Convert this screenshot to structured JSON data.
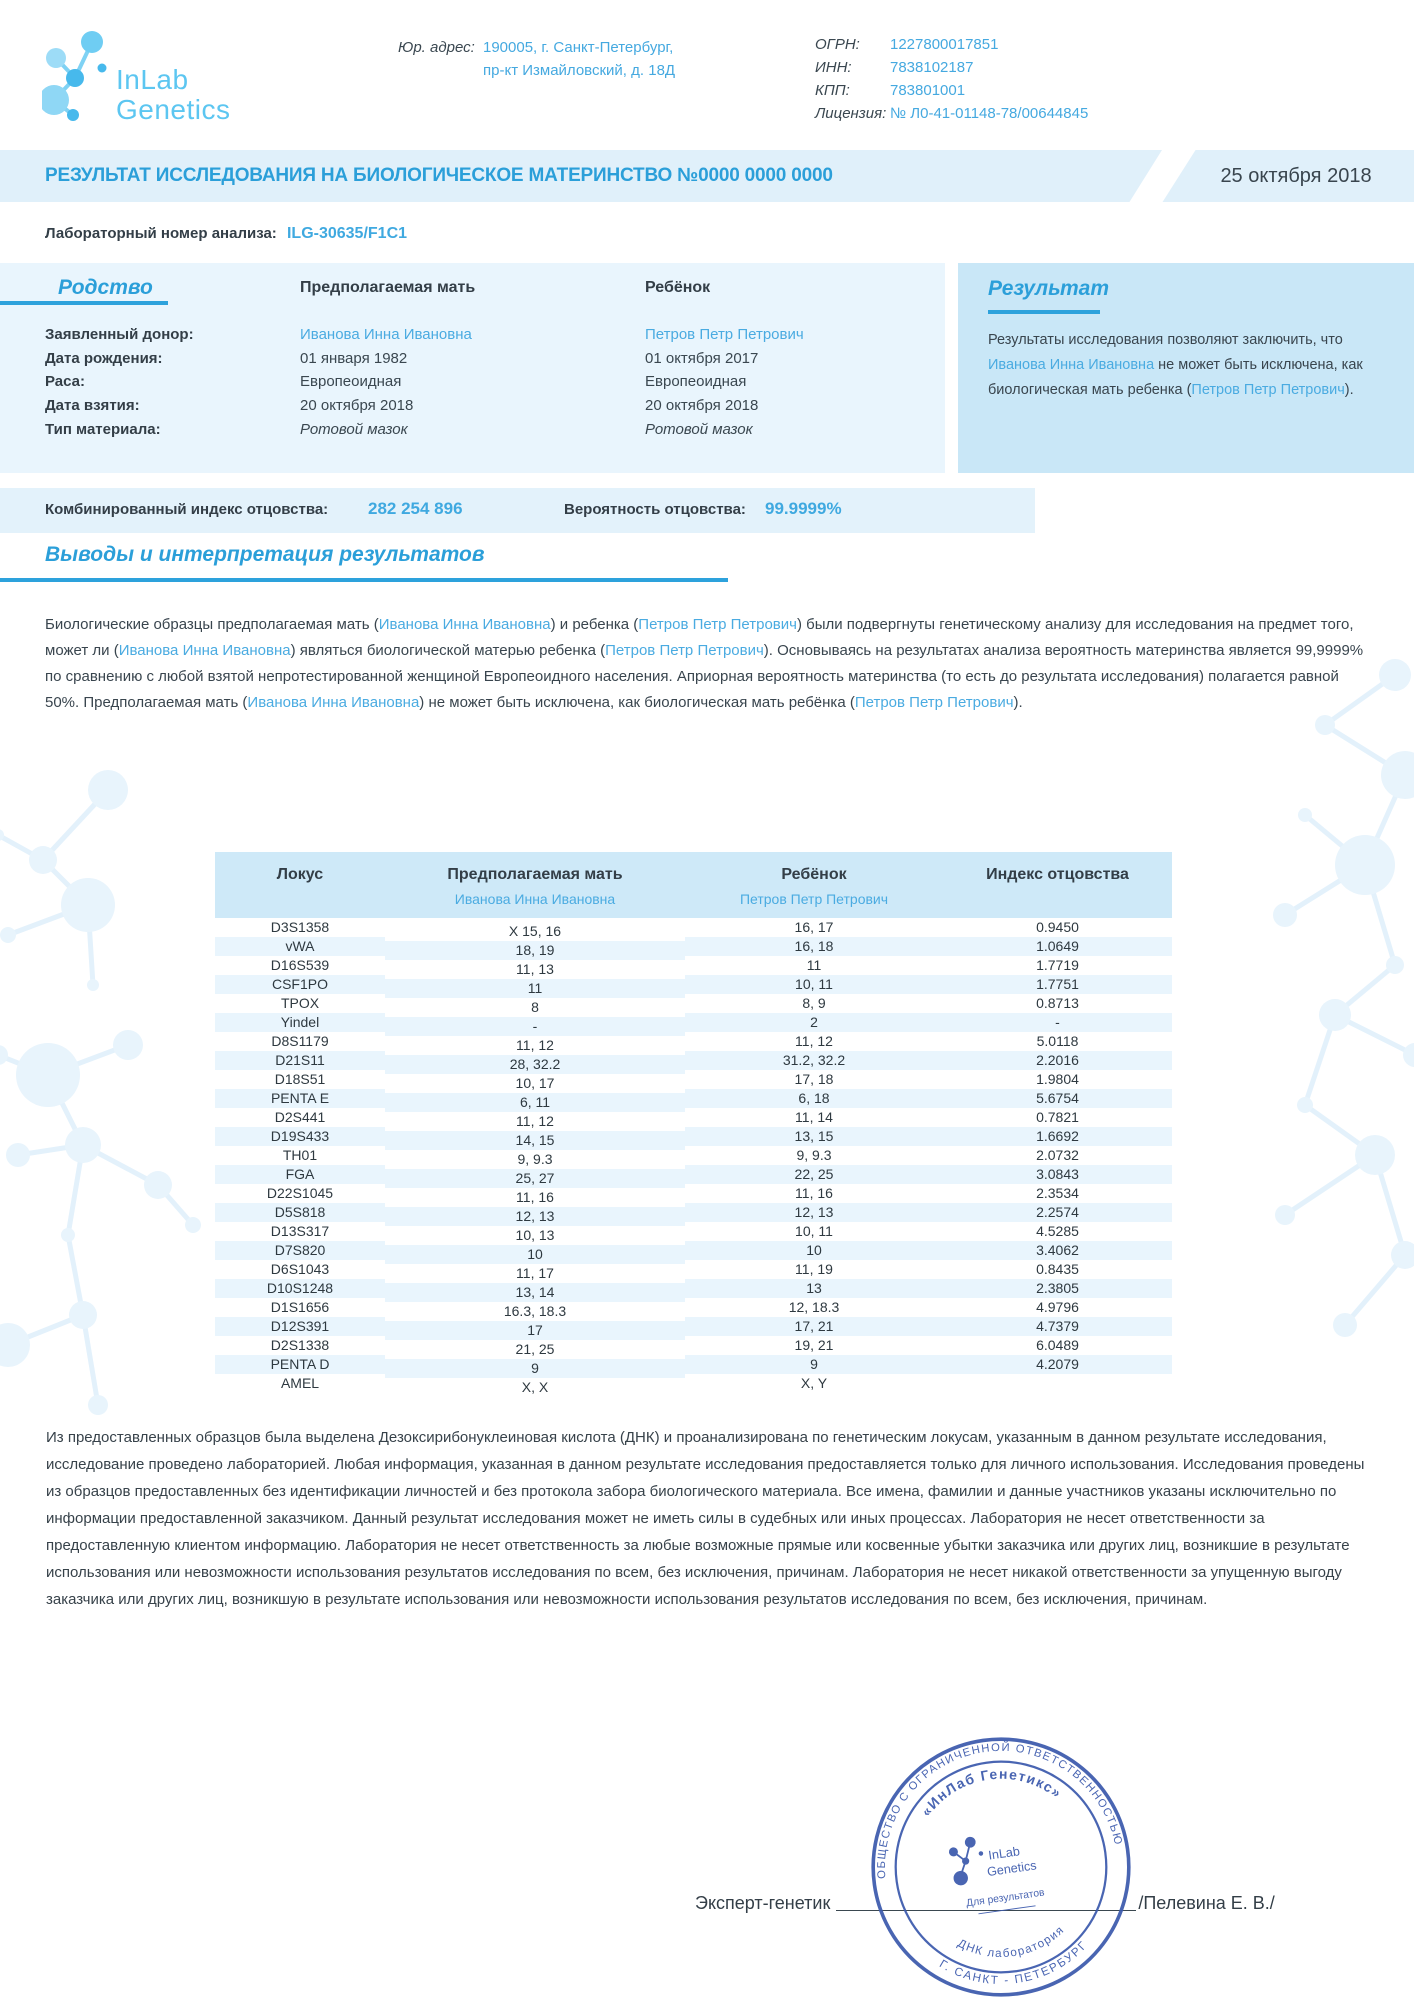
{
  "header": {
    "logo": {
      "line1": "InLab",
      "line2": "Genetics"
    },
    "legal_address_label": "Юр. адрес:",
    "legal_address_line1": "190005, г. Санкт-Петербург,",
    "legal_address_line2": "пр-кт Измайловский, д. 18Д",
    "registry": [
      {
        "label": "ОГРН:",
        "value": "1227800017851"
      },
      {
        "label": "ИНН:",
        "value": "7838102187"
      },
      {
        "label": "КПП:",
        "value": "783801001"
      },
      {
        "label": "Лицензия:",
        "value": "№ Л0-41-01148-78/00644845"
      }
    ]
  },
  "title_bar": {
    "title": "РЕЗУЛЬТАТ ИССЛЕДОВАНИЯ НА БИОЛОГИЧЕСКОЕ МАТЕРИНСТВО №0000 0000 0000",
    "date": "25 октября 2018"
  },
  "lab_number": {
    "label": "Лабораторный номер анализа:",
    "value": "ILG-30635/F1C1"
  },
  "kinship": {
    "section_title": "Родство",
    "col_mother": "Предполагаемая мать",
    "col_child": "Ребёнок",
    "rows": [
      {
        "label": "Заявленный донор:",
        "mother": "Иванова Инна Ивановна",
        "child": "Петров Петр Петрович"
      },
      {
        "label": "Дата рождения:",
        "mother": "01 января 1982",
        "child": "01 октября 2017"
      },
      {
        "label": "Раса:",
        "mother": "Европеоидная",
        "child": "Европеоидная"
      },
      {
        "label": "Дата взятия:",
        "mother": "20 октября 2018",
        "child": "20 октября 2018"
      },
      {
        "label": "Тип материала:",
        "mother": "Ротовой мазок",
        "child": "Ротовой мазок"
      }
    ]
  },
  "result_panel": {
    "title": "Результат",
    "segments": [
      {
        "t": "Результаты исследования позволяют заключить, что "
      },
      {
        "t": "Иванова Инна Ивановна",
        "b": true
      },
      {
        "t": " не может быть исключена, как биологическая мать ребенка ("
      },
      {
        "t": "Петров Петр Петрович",
        "b": true
      },
      {
        "t": ")."
      }
    ]
  },
  "cpi": {
    "label": "Комбинированный индекс отцовства:",
    "value": "282 254 896",
    "prob_label": "Вероятность отцовства:",
    "prob_value": "99.9999%"
  },
  "conclusions": {
    "title": "Выводы и интерпретация результатов",
    "segments": [
      {
        "t": "Биологические образцы предполагаемая мать ("
      },
      {
        "t": "Иванова Инна Ивановна",
        "b": true
      },
      {
        "t": ") и ребенка ("
      },
      {
        "t": "Петров Петр Петрович",
        "b": true
      },
      {
        "t": ") были подвергнуты генетическому анализу для исследования на предмет того, может ли ("
      },
      {
        "t": "Иванова Инна Ивановна",
        "b": true
      },
      {
        "t": ") являться биологической матерью ребенка ("
      },
      {
        "t": "Петров Петр Петрович",
        "b": true
      },
      {
        "t": "). Основываясь на результатах анализа вероятность материнства является 99,9999% по сравнению с любой взятой непротестированной женщиной Европеоидного населения. Априорная вероятность материнства (то есть до результата исследования) полагается равной 50%. Предполагаемая мать ("
      },
      {
        "t": "Иванова Инна Ивановна",
        "b": true
      },
      {
        "t": ") не может быть исключена, как биологическая мать ребёнка ("
      },
      {
        "t": "Петров Петр Петрович",
        "b": true
      },
      {
        "t": ")."
      }
    ]
  },
  "loci_table": {
    "col_locus": "Локус",
    "col_mother": "Предполагаемая мать",
    "sub_mother": "Иванова Инна Ивановна",
    "col_child": "Ребёнок",
    "sub_child": "Петров Петр Петрович",
    "col_index": "Индекс отцовства",
    "rows": [
      [
        "D3S1358",
        "X 15, 16",
        "16, 17",
        "0.9450"
      ],
      [
        "vWA",
        "18, 19",
        "16, 18",
        "1.0649"
      ],
      [
        "D16S539",
        "11, 13",
        "11",
        "1.7719"
      ],
      [
        "CSF1PO",
        "11",
        "10, 11",
        "1.7751"
      ],
      [
        "TPOX",
        "8",
        "8, 9",
        "0.8713"
      ],
      [
        "Yindel",
        "-",
        "2",
        "-"
      ],
      [
        "D8S1179",
        "11, 12",
        "11, 12",
        "5.0118"
      ],
      [
        "D21S11",
        "28, 32.2",
        "31.2, 32.2",
        "2.2016"
      ],
      [
        "D18S51",
        "10, 17",
        "17, 18",
        "1.9804"
      ],
      [
        "PENTA E",
        "6, 11",
        "6, 18",
        "5.6754"
      ],
      [
        "D2S441",
        "11, 12",
        "11, 14",
        "0.7821"
      ],
      [
        "D19S433",
        "14, 15",
        "13, 15",
        "1.6692"
      ],
      [
        "TH01",
        "9, 9.3",
        "9, 9.3",
        "2.0732"
      ],
      [
        "FGA",
        "25, 27",
        "22, 25",
        "3.0843"
      ],
      [
        "D22S1045",
        "11, 16",
        "11, 16",
        "2.3534"
      ],
      [
        "D5S818",
        "12, 13",
        "12, 13",
        "2.2574"
      ],
      [
        "D13S317",
        "10, 13",
        "10, 11",
        "4.5285"
      ],
      [
        "D7S820",
        "10",
        "10",
        "3.4062"
      ],
      [
        "D6S1043",
        "11, 17",
        "11, 19",
        "0.8435"
      ],
      [
        "D10S1248",
        "13, 14",
        "13",
        "2.3805"
      ],
      [
        "D1S1656",
        "16.3, 18.3",
        "12, 18.3",
        "4.9796"
      ],
      [
        "D12S391",
        "17",
        "17, 21",
        "4.7379"
      ],
      [
        "D2S1338",
        "21, 25",
        "19, 21",
        "6.0489"
      ],
      [
        "PENTA D",
        "9",
        "9",
        "4.2079"
      ],
      [
        "AMEL",
        "X, X",
        "X, Y",
        ""
      ]
    ]
  },
  "disclaimer": "Из предоставленных образцов была выделена Дезоксирибонуклеиновая кислота (ДНК) и проанализирована по генетическим локусам, указанным в данном результате исследования, исследование проведено лабораторией. Любая информация, указанная в данном результате исследования предоставляется только для личного использования. Исследования проведены из образцов предоставленных без идентификации личностей и без протокола забора биологического материала.  Все имена, фамилии и данные участников указаны исключительно по информации предоставленной заказчиком. Данный результат исследования может не иметь силы в судебных или иных процессах. Лаборатория не несет ответственности за предоставленную клиентом информацию. Лаборатория не несет ответственность за любые возможные прямые или косвенные убытки заказчика или других лиц, возникшие в результате использования или невозможности использования результатов исследования по всем, без исключения, причинам.  Лаборатория не несет никакой ответственности за упущенную выгоду заказчика или других лиц, возникшую в результате использования или невозможности использования результатов исследования по всем, без исключения, причинам.",
  "signature": {
    "role": "Эксперт-генетик",
    "name": "/Пелевина Е. В./"
  },
  "stamp": {
    "outer_top": "ОБЩЕСТВО С ОГРАНИЧЕННОЙ ОТВЕТСТВЕННОСТЬЮ",
    "outer_bottom": "Г. САНКТ - ПЕТЕРБУРГ",
    "inner_top": "«ИнЛаб Генетикс»",
    "inner_bottom": "ДНК лаборатория",
    "center_line1": "InLab",
    "center_line2": "Genetics",
    "center_caption": "Для результатов"
  },
  "colors": {
    "accent_blue": "#2b9fd9",
    "link_blue": "#4aabe1",
    "panel_blue": "#c9e7f7",
    "band_blue": "#e0f0fa",
    "stamp_blue": "#3c5aad"
  }
}
